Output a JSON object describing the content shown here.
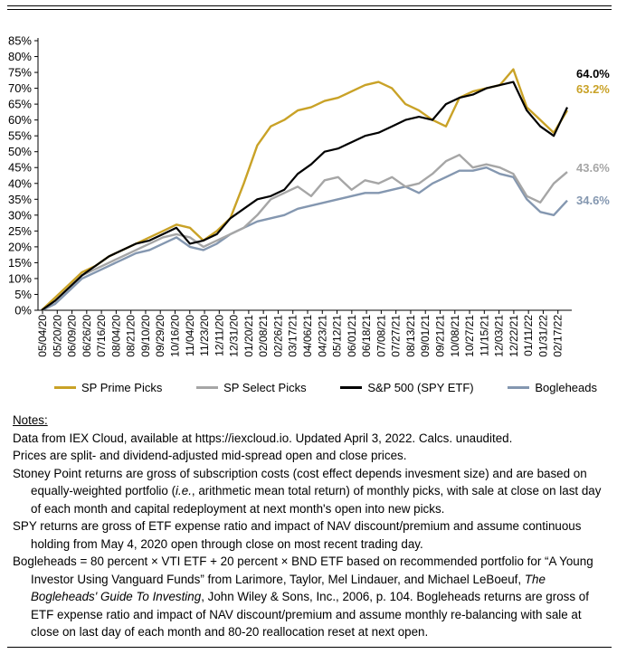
{
  "colors": {
    "sp_prime": "#C9A227",
    "sp_select": "#A6A6A6",
    "spy": "#000000",
    "bogleheads": "#8497B0"
  },
  "chart_data": {
    "type": "line",
    "ylim": [
      0,
      85
    ],
    "y_ticks": [
      "0%",
      "5%",
      "10%",
      "15%",
      "20%",
      "25%",
      "30%",
      "35%",
      "40%",
      "45%",
      "50%",
      "55%",
      "60%",
      "65%",
      "70%",
      "75%",
      "80%",
      "85%"
    ],
    "x_tick_labels": [
      "05/04/20",
      "05/20/20",
      "06/09/20",
      "06/26/20",
      "07/16/20",
      "08/04/20",
      "08/21/20",
      "09/10/20",
      "09/29/20",
      "10/16/20",
      "11/04/20",
      "11/23/20",
      "12/11/20",
      "12/31/20",
      "01/20/21",
      "02/08/21",
      "02/26/21",
      "03/17/21",
      "04/06/21",
      "04/23/21",
      "05/12/21",
      "06/01/21",
      "06/18/21",
      "07/08/21",
      "07/27/21",
      "08/13/21",
      "09/01/21",
      "09/21/21",
      "10/08/21",
      "10/27/21",
      "11/15/21",
      "12/03/21",
      "12/22/21",
      "01/11/22",
      "01/31/22",
      "02/17/22"
    ],
    "series": [
      {
        "name": "SP Prime Picks",
        "end_label": "63.2%",
        "values": [
          0,
          4,
          8,
          12,
          14,
          17,
          19,
          21,
          23,
          25,
          27,
          26,
          22,
          25,
          29,
          40,
          52,
          58,
          60,
          63,
          64,
          66,
          67,
          69,
          71,
          72,
          70,
          65,
          63,
          60,
          58,
          67,
          69,
          70,
          71,
          76,
          64,
          60,
          56,
          63
        ]
      },
      {
        "name": "SP Select Picks",
        "end_label": "43.6%",
        "values": [
          0,
          3,
          7,
          11,
          13,
          15,
          17,
          19,
          21,
          23,
          24,
          23,
          20,
          22,
          24,
          26,
          30,
          35,
          37,
          39,
          36,
          41,
          42,
          38,
          41,
          40,
          42,
          39,
          40,
          43,
          47,
          49,
          45,
          46,
          45,
          43,
          36,
          34,
          40,
          43.6
        ]
      },
      {
        "name": "S&P 500 (SPY ETF)",
        "end_label": "64.0%",
        "values": [
          0,
          3,
          7,
          11,
          14,
          17,
          19,
          21,
          22,
          24,
          26,
          21,
          22,
          24,
          29,
          32,
          35,
          36,
          38,
          43,
          46,
          50,
          51,
          53,
          55,
          56,
          58,
          60,
          61,
          60,
          65,
          67,
          68,
          70,
          71,
          72,
          63,
          58,
          55,
          64
        ]
      },
      {
        "name": "Bogleheads",
        "end_label": "34.6%",
        "values": [
          0,
          2,
          6,
          10,
          12,
          14,
          16,
          18,
          19,
          21,
          23,
          20,
          19,
          21,
          24,
          26,
          28,
          29,
          30,
          32,
          33,
          34,
          35,
          36,
          37,
          37,
          38,
          39,
          37,
          40,
          42,
          44,
          44,
          45,
          43,
          42,
          35,
          31,
          30,
          34.6
        ]
      }
    ]
  },
  "notes": {
    "heading": "Notes:",
    "line1": "Data from IEX Cloud, available at https://iexcloud.io. Updated April 3, 2022. Calcs. unaudited.",
    "line2": "Prices are split- and dividend-adjusted mid-spread open and close prices.",
    "stoney_pre": "Stoney Point returns are gross of subscription costs (cost effect depends invesment size) and are based on equally-weighted portfolio (",
    "stoney_ie": "i.e.",
    "stoney_post": ", arithmetic mean total return) of monthly picks, with sale at close on last day of each month and capital redeployment at next month's open into new picks.",
    "spy": "SPY returns are gross of ETF expense ratio and impact of NAV discount/premium and assume continuous holding from May 4, 2020 open through close on most recent trading day.",
    "bogle_pre": "Bogleheads = 80 percent × VTI ETF + 20 percent × BND ETF based on recommended portfolio for “A Young Investor Using Vanguard Funds” from Larimore, Taylor, Mel Lindauer, and Michael LeBoeuf, ",
    "bogle_book": "The Bogleheads' Guide To Investing",
    "bogle_post": ", John Wiley & Sons, Inc., 2006, p. 104. Bogleheads returns are gross of ETF expense ratio and impact of NAV discount/premium and assume monthly re-balancing with sale at close on last day of each month and 80-20 reallocation reset at next open."
  }
}
